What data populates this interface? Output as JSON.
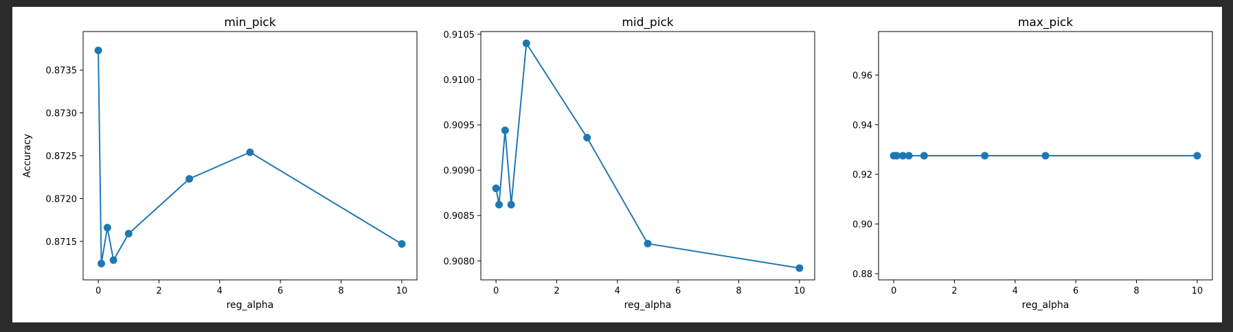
{
  "figure": {
    "background": "#ffffff",
    "page_background": "#2b2b2b"
  },
  "series_color": "#1f77b4",
  "chart_data": [
    {
      "type": "line",
      "title": "min_pick",
      "xlabel": "reg_alpha",
      "ylabel": "Accuracy",
      "x": [
        0,
        0.1,
        0.3,
        0.5,
        1,
        3,
        5,
        10
      ],
      "values": [
        0.87373,
        0.87124,
        0.87166,
        0.87128,
        0.87159,
        0.87223,
        0.87254,
        0.87147
      ],
      "xlim": [
        -0.5,
        10.5
      ],
      "ylim": [
        0.87105,
        0.87395
      ],
      "xticks": [
        0,
        2,
        4,
        6,
        8,
        10
      ],
      "xtick_labels": [
        "0",
        "2",
        "4",
        "6",
        "8",
        "10"
      ],
      "yticks": [
        0.8715,
        0.872,
        0.8725,
        0.873,
        0.8735
      ],
      "ytick_labels": [
        "0.8715",
        "0.8720",
        "0.8725",
        "0.8730",
        "0.8735"
      ],
      "grid": false,
      "marker": "circle"
    },
    {
      "type": "line",
      "title": "mid_pick",
      "xlabel": "reg_alpha",
      "ylabel": "",
      "x": [
        0,
        0.1,
        0.3,
        0.5,
        1,
        3,
        5,
        10
      ],
      "values": [
        0.9088,
        0.90862,
        0.90944,
        0.90862,
        0.9104,
        0.90936,
        0.90819,
        0.90792
      ],
      "xlim": [
        -0.5,
        10.5
      ],
      "ylim": [
        0.90779,
        0.91053
      ],
      "xticks": [
        0,
        2,
        4,
        6,
        8,
        10
      ],
      "xtick_labels": [
        "0",
        "2",
        "4",
        "6",
        "8",
        "10"
      ],
      "yticks": [
        0.908,
        0.9085,
        0.909,
        0.9095,
        0.91,
        0.9105
      ],
      "ytick_labels": [
        "0.9080",
        "0.9085",
        "0.9090",
        "0.9095",
        "0.9100",
        "0.9105"
      ],
      "grid": false,
      "marker": "circle"
    },
    {
      "type": "line",
      "title": "max_pick",
      "xlabel": "reg_alpha",
      "ylabel": "",
      "x": [
        0,
        0.1,
        0.3,
        0.5,
        1,
        3,
        5,
        10
      ],
      "values": [
        0.9275,
        0.9275,
        0.9275,
        0.9275,
        0.9275,
        0.9275,
        0.9275,
        0.9275
      ],
      "xlim": [
        -0.5,
        10.5
      ],
      "ylim": [
        0.8775,
        0.9775
      ],
      "xticks": [
        0,
        2,
        4,
        6,
        8,
        10
      ],
      "xtick_labels": [
        "0",
        "2",
        "4",
        "6",
        "8",
        "10"
      ],
      "yticks": [
        0.88,
        0.9,
        0.92,
        0.94,
        0.96
      ],
      "ytick_labels": [
        "0.88",
        "0.90",
        "0.92",
        "0.94",
        "0.96"
      ],
      "grid": false,
      "marker": "circle"
    }
  ]
}
